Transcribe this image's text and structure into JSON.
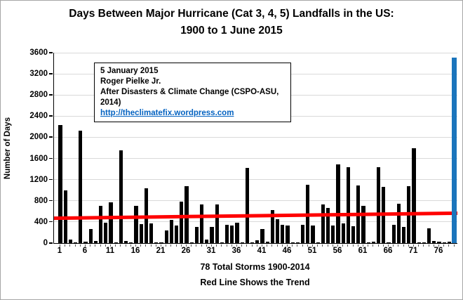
{
  "title_line1": "Days Between Major Hurricane (Cat 3, 4, 5) Landfalls in the US:",
  "title_line2": "1900 to 1 June 2015",
  "annotation": {
    "line1": "5 January 2015",
    "line2": "Roger Pielke Jr.",
    "line3": "After Disasters & Climate Change (CSPO-ASU, 2014)",
    "link": "http://theclimatefix.wordpress.com"
  },
  "colors": {
    "bar": "#000000",
    "final_bar": "#1b75bc",
    "trend_line": "#ff0000",
    "gridline": "#d9d9d9",
    "link": "#0563c1"
  },
  "chart_data": {
    "type": "bar",
    "title": "Days Between Major Hurricane (Cat 3, 4, 5) Landfalls in the US: 1900 to 1 June 2015",
    "ylabel": "Number of Days",
    "xlabel_line1": "78 Total Storms 1900-2014",
    "xlabel_line2": "Red Line Shows the Trend",
    "ylim": [
      0,
      3600
    ],
    "ytick_step": 400,
    "grid": true,
    "x_tick_labels": [
      1,
      6,
      11,
      16,
      21,
      26,
      31,
      36,
      41,
      46,
      51,
      56,
      61,
      66,
      71,
      76
    ],
    "values": [
      2230,
      990,
      60,
      20,
      2120,
      30,
      270,
      40,
      710,
      380,
      770,
      10,
      1760,
      40,
      10,
      710,
      360,
      1040,
      370,
      10,
      20,
      240,
      440,
      330,
      780,
      1080,
      20,
      300,
      730,
      60,
      310,
      730,
      20,
      350,
      330,
      390,
      10,
      1420,
      20,
      50,
      270,
      30,
      630,
      450,
      350,
      330,
      10,
      10,
      350,
      1100,
      330,
      10,
      730,
      670,
      330,
      1490,
      370,
      1430,
      320,
      1090,
      700,
      20,
      30,
      1440,
      1060,
      20,
      340,
      740,
      310,
      1070,
      1800,
      20,
      20,
      280,
      40,
      30,
      10,
      30
    ],
    "final_blue_bar_value": 3510,
    "trend_line": {
      "start_value": 470,
      "end_value": 565
    }
  }
}
